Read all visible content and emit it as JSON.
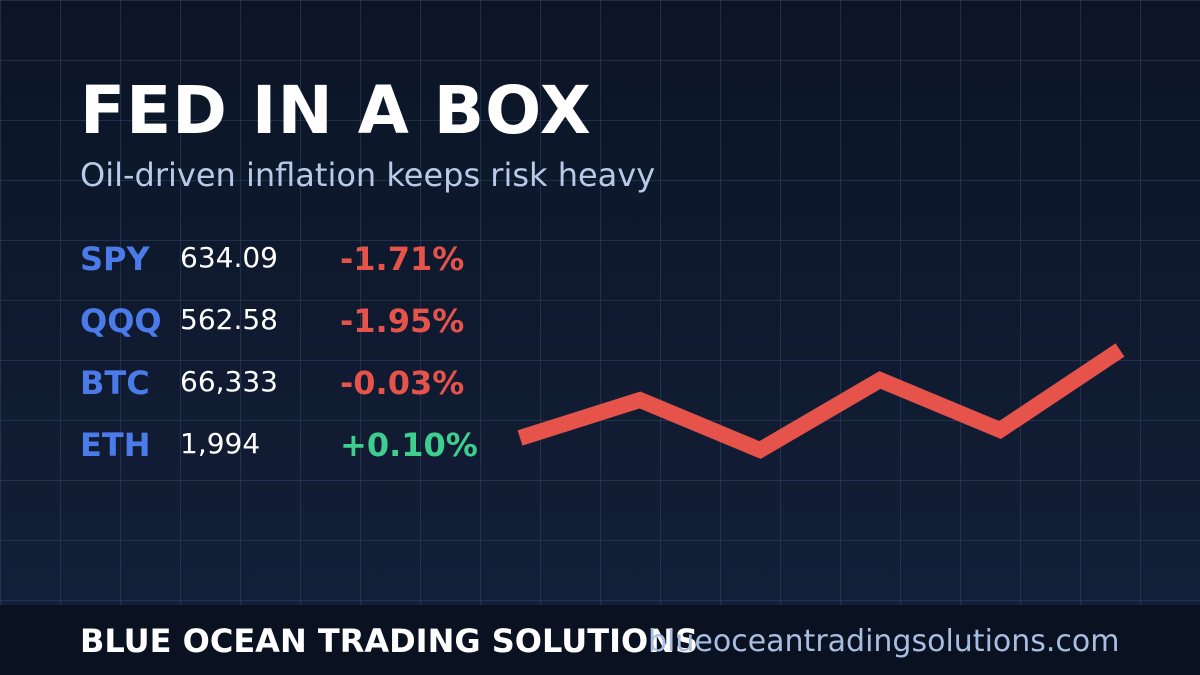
{
  "header": {
    "title": "FED IN A BOX",
    "subtitle": "Oil-driven inflation keeps risk heavy"
  },
  "tickers": [
    {
      "symbol": "SPY",
      "price": "634.09",
      "change": "-1.71%",
      "color": "#e5534b"
    },
    {
      "symbol": "QQQ",
      "price": "562.58",
      "change": "-1.95%",
      "color": "#e5534b"
    },
    {
      "symbol": "BTC",
      "price": "66,333",
      "change": "-0.03%",
      "color": "#e5534b"
    },
    {
      "symbol": "ETH",
      "price": "1,994",
      "change": "+0.10%",
      "color": "#3ecf8e"
    }
  ],
  "footer": {
    "brand": "BLUE OCEAN TRADING SOLUTIONS",
    "url": "blueoceantradingsolutions.com"
  }
}
